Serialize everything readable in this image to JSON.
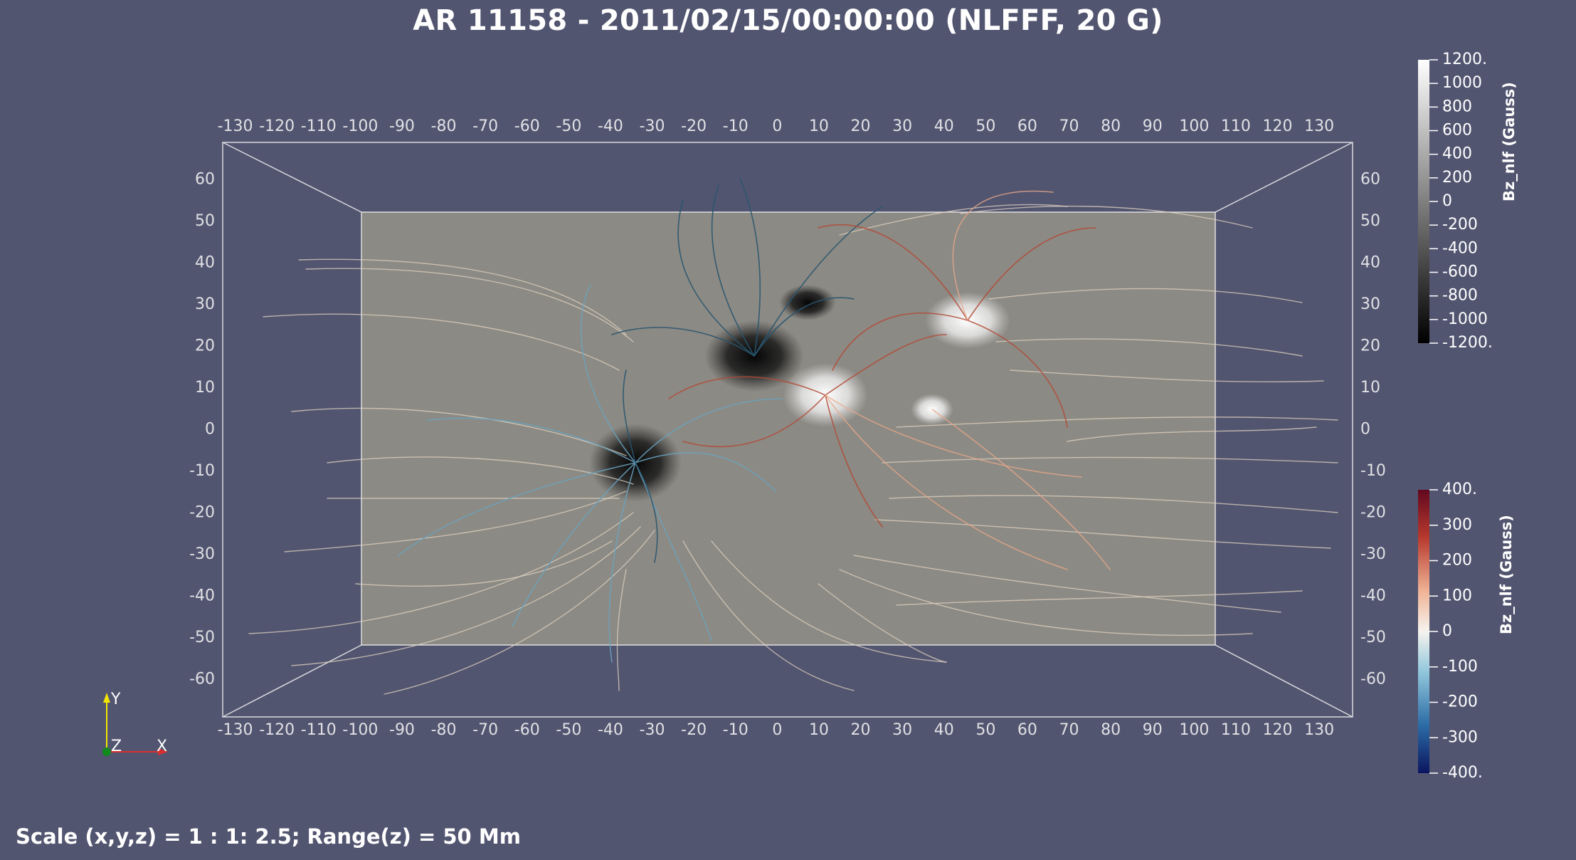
{
  "title": "AR 11158 - 2011/02/15/00:00:00 (NLFFF, 20 G)",
  "footer": "Scale (x,y,z) = 1 : 1: 2.5; Range(z) = 50 Mm",
  "box_axes": {
    "x_ticks": [
      -130,
      -120,
      -110,
      -100,
      -90,
      -80,
      -70,
      -60,
      -50,
      -40,
      -30,
      -20,
      -10,
      0,
      10,
      20,
      30,
      40,
      50,
      60,
      70,
      80,
      90,
      100,
      110,
      120,
      130
    ],
    "y_ticks": [
      60,
      50,
      40,
      30,
      20,
      10,
      0,
      -10,
      -20,
      -30,
      -40,
      -50,
      -60
    ],
    "x_range": [
      -133,
      138
    ],
    "y_range": [
      -69,
      69
    ],
    "magnetogram_x_range": [
      -100,
      103
    ],
    "magnetogram_y_range": [
      -52,
      52
    ]
  },
  "colorbars": [
    {
      "title": "Bz_nlf (Gauss)",
      "labels": [
        "1200.",
        "1000",
        "800",
        "600",
        "400",
        "200",
        "0",
        "-200",
        "-400",
        "-600",
        "-800",
        "-1000",
        "-1200."
      ],
      "range": [
        -1200,
        1200
      ],
      "colors": [
        "#000000",
        "#ffffff"
      ]
    },
    {
      "title": "Bz_nlf (Gauss)",
      "labels": [
        "400.",
        "300",
        "200",
        "100",
        "0",
        "-100",
        "-200",
        "-300",
        "-400."
      ],
      "range": [
        -400,
        400
      ],
      "colors": [
        "#0b1560",
        "#2c6ca6",
        "#93c8dc",
        "#f6f3ee",
        "#f0b496",
        "#b83a2e",
        "#62081f"
      ]
    }
  ],
  "orientation_axes": {
    "y_label": "Y",
    "z_label": "Z",
    "x_label": "X",
    "y_color": "#f3e500",
    "x_color": "#d83030",
    "z_color": "#118a1e"
  },
  "field_colors": {
    "magnetogram_gray": "#8c8a84",
    "negative": "#3d6d8a",
    "positive": "#b24a36",
    "weak": "#ddd0bf"
  }
}
